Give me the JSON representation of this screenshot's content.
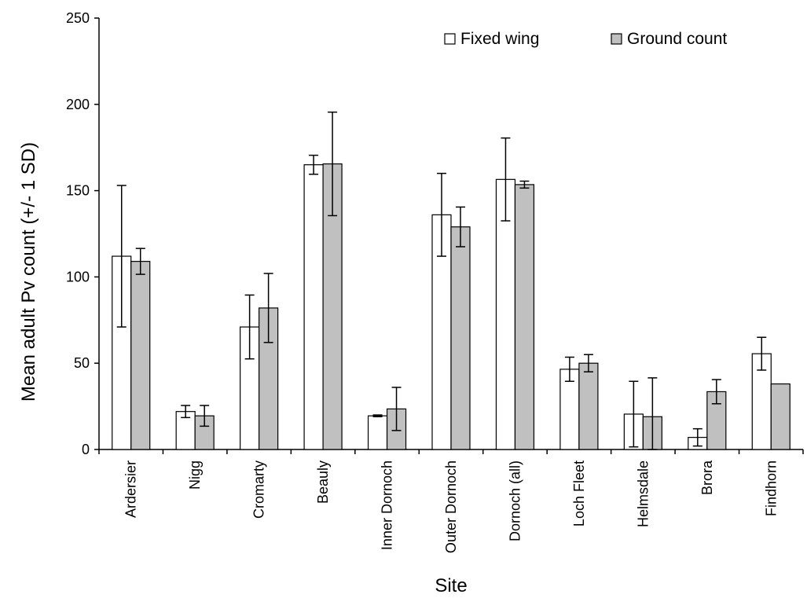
{
  "chart_data": {
    "type": "bar",
    "xlabel": "Site",
    "ylabel": "Mean adult Pv count (+/- 1 SD)",
    "ylim": [
      0,
      250
    ],
    "yticks": [
      0,
      50,
      100,
      150,
      200,
      250
    ],
    "grid": false,
    "legend_position": "top-right",
    "categories": [
      "Ardersier",
      "Nigg",
      "Cromarty",
      "Beauly",
      "Inner Dornoch",
      "Outer Dornoch",
      "Dornoch (all)",
      "Loch Fleet",
      "Helmsdale",
      "Brora",
      "Findhorn"
    ],
    "series": [
      {
        "name": "Fixed wing",
        "color": "#ffffff",
        "values": [
          112,
          22,
          71,
          165,
          19.5,
          136,
          156.5,
          46.5,
          20.5,
          7,
          55.5
        ],
        "sd": [
          41,
          3.5,
          18.5,
          5.5,
          0.5,
          24,
          24,
          7,
          19,
          5,
          9.5
        ]
      },
      {
        "name": "Ground count",
        "color": "#c0c0c0",
        "values": [
          109,
          19.5,
          82,
          165.5,
          23.5,
          129,
          153.5,
          50,
          19,
          33.5,
          38
        ],
        "sd": [
          7.5,
          6,
          20,
          30,
          12.5,
          11.5,
          2,
          5,
          22.5,
          7,
          0
        ]
      }
    ]
  }
}
